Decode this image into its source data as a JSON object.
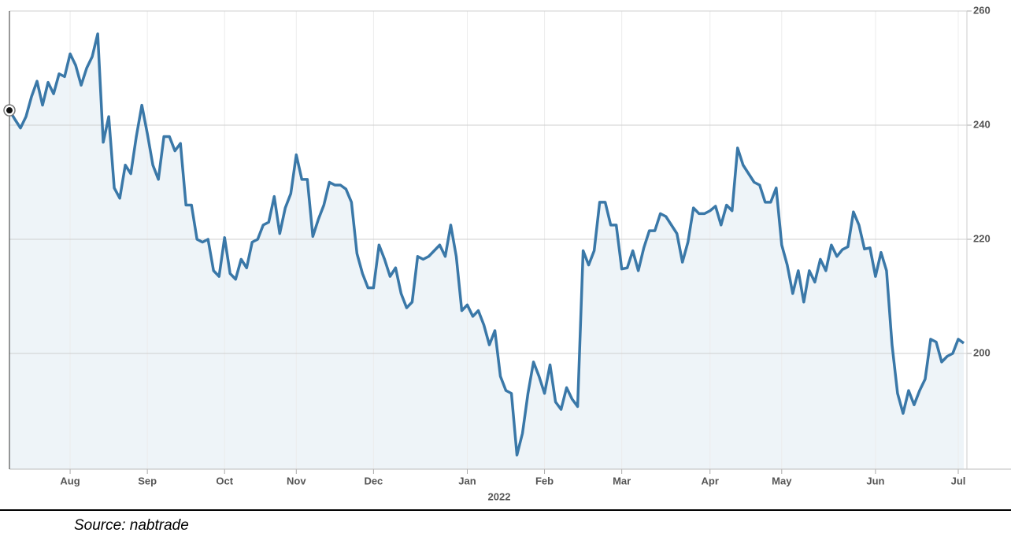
{
  "chart_data": {
    "type": "line",
    "categories": [
      null,
      null,
      null,
      null,
      null,
      null,
      null,
      null,
      null,
      null,
      null,
      "Aug",
      null,
      null,
      null,
      null,
      null,
      null,
      null,
      null,
      null,
      null,
      null,
      null,
      null,
      "Sep",
      null,
      null,
      null,
      null,
      null,
      null,
      null,
      null,
      null,
      null,
      null,
      null,
      null,
      "Oct",
      null,
      null,
      null,
      null,
      null,
      null,
      null,
      null,
      null,
      null,
      null,
      null,
      "Nov",
      null,
      null,
      null,
      null,
      null,
      null,
      null,
      null,
      null,
      null,
      null,
      null,
      null,
      "Dec",
      null,
      null,
      null,
      null,
      null,
      null,
      null,
      null,
      null,
      null,
      null,
      null,
      null,
      null,
      null,
      null,
      "Jan",
      null,
      null,
      null,
      null,
      null,
      null,
      null,
      null,
      null,
      null,
      null,
      null,
      null,
      "Feb",
      null,
      null,
      null,
      null,
      null,
      null,
      null,
      null,
      null,
      null,
      null,
      null,
      null,
      "Mar",
      null,
      null,
      null,
      null,
      null,
      null,
      null,
      null,
      null,
      null,
      null,
      null,
      null,
      null,
      null,
      "Apr",
      null,
      null,
      null,
      null,
      null,
      null,
      null,
      null,
      null,
      null,
      null,
      null,
      "May",
      null,
      null,
      null,
      null,
      null,
      null,
      null,
      null,
      null,
      null,
      null,
      null,
      null,
      null,
      null,
      null,
      "Jun",
      null,
      null,
      null,
      null,
      null,
      null,
      null,
      null,
      null,
      null,
      null,
      null,
      null,
      null,
      "Jul",
      null
    ],
    "series": [
      {
        "color": "#3a78a8",
        "values": [
          242.6,
          241,
          239.5,
          241.5,
          245,
          247.7,
          243.5,
          247.5,
          245.5,
          249,
          248.5,
          252.5,
          250.5,
          247,
          250,
          252,
          256,
          237,
          241.5,
          229,
          227.2,
          233,
          231.5,
          238,
          243.5,
          238.5,
          233,
          230.5,
          238,
          238,
          235.5,
          236.8,
          226,
          226,
          220,
          219.5,
          220,
          214.5,
          213.5,
          220.3,
          214,
          213,
          216.5,
          215,
          219.5,
          220,
          222.5,
          223,
          227.5,
          221,
          225.5,
          228,
          234.8,
          230.5,
          230.5,
          220.5,
          223.5,
          226,
          230,
          229.5,
          229.5,
          228.8,
          226.5,
          217.5,
          214,
          211.5,
          211.5,
          219,
          216.5,
          213.5,
          215,
          210.5,
          208,
          209,
          217,
          216.5,
          217,
          218,
          219,
          217,
          222.5,
          217,
          207.5,
          208.5,
          206.5,
          207.5,
          205,
          201.5,
          204,
          196,
          193.5,
          193,
          182.2,
          186,
          193,
          198.5,
          196,
          193,
          198,
          191.5,
          190.2,
          194,
          192,
          190.7,
          218,
          215.5,
          218,
          226.5,
          226.5,
          222.5,
          222.5,
          214.8,
          215,
          218,
          214.5,
          218.5,
          221.5,
          221.5,
          224.5,
          224,
          222.5,
          221,
          216,
          219.5,
          225.5,
          224.5,
          224.5,
          225,
          225.8,
          222.5,
          226,
          225,
          236,
          233,
          231.5,
          230,
          229.5,
          226.5,
          226.5,
          229,
          219,
          215.5,
          210.5,
          214.5,
          209,
          214.5,
          212.5,
          216.5,
          214.5,
          219,
          217,
          218.2,
          218.7,
          224.8,
          222.5,
          218.3,
          218.5,
          213.5,
          217.7,
          214.5,
          201.5,
          193,
          189.5,
          193.5,
          191,
          193.5,
          195.5,
          202.5,
          202,
          198.5,
          199.5,
          200,
          202.5,
          201.8
        ]
      }
    ],
    "fill_color": "#eef4f8",
    "ylim": [
      180,
      260
    ],
    "yticks": [
      200,
      220,
      240,
      260
    ],
    "grid": true,
    "year_label": "2022",
    "source": "Source: nabtrade"
  }
}
